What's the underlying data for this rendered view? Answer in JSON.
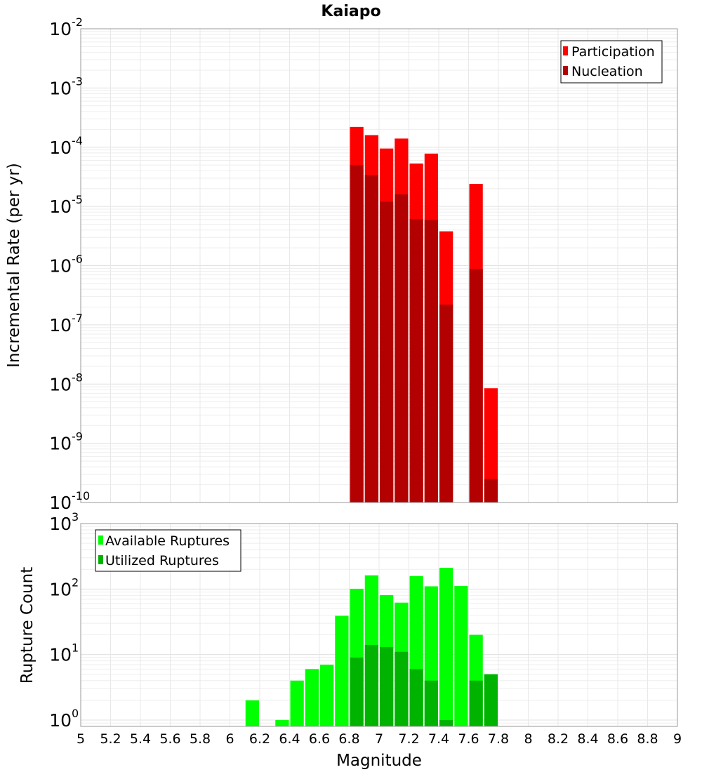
{
  "chart_data": [
    {
      "type": "bar",
      "title": "Kaiapo",
      "ylabel": "Incremental Rate (per yr)",
      "xlabel": "",
      "yscale": "log",
      "ylim": [
        1e-10,
        0.01
      ],
      "xlim": [
        5,
        9
      ],
      "bar_width": 0.1,
      "y_ticks": [
        {
          "base": "10",
          "exp": "-10",
          "value": 1e-10
        },
        {
          "base": "10",
          "exp": "-9",
          "value": 1e-09
        },
        {
          "base": "10",
          "exp": "-8",
          "value": 1e-08
        },
        {
          "base": "10",
          "exp": "-7",
          "value": 1e-07
        },
        {
          "base": "10",
          "exp": "-6",
          "value": 1e-06
        },
        {
          "base": "10",
          "exp": "-5",
          "value": 1e-05
        },
        {
          "base": "10",
          "exp": "-4",
          "value": 0.0001
        },
        {
          "base": "10",
          "exp": "-3",
          "value": 0.001
        },
        {
          "base": "10",
          "exp": "-2",
          "value": 0.01
        }
      ],
      "legend_position": "top-right",
      "grid": true,
      "series": [
        {
          "name": "Participation",
          "color": "#ff0000",
          "x": [
            6.85,
            6.95,
            7.05,
            7.15,
            7.25,
            7.35,
            7.45,
            7.65,
            7.75
          ],
          "values": [
            0.00022,
            0.00016,
            9.5e-05,
            0.00014,
            5.3e-05,
            7.8e-05,
            3.8e-06,
            2.4e-05,
            8.5e-09
          ]
        },
        {
          "name": "Nucleation",
          "color": "#b30000",
          "x": [
            6.85,
            6.95,
            7.05,
            7.15,
            7.25,
            7.35,
            7.45,
            7.65,
            7.75
          ],
          "values": [
            5e-05,
            3.4e-05,
            1.2e-05,
            1.6e-05,
            6.1e-06,
            5.9e-06,
            2.2e-07,
            8.8e-07,
            2.5e-10
          ]
        }
      ]
    },
    {
      "type": "bar",
      "title": "",
      "ylabel": "Rupture Count",
      "xlabel": "Magnitude",
      "yscale": "log",
      "ylim": [
        0.8,
        1000
      ],
      "xlim": [
        5,
        9
      ],
      "bar_width": 0.1,
      "x_ticks": [
        "5",
        "5.2",
        "5.4",
        "5.6",
        "5.8",
        "6",
        "6.2",
        "6.4",
        "6.6",
        "6.8",
        "7",
        "7.2",
        "7.4",
        "7.6",
        "7.8",
        "8",
        "8.2",
        "8.4",
        "8.6",
        "8.8",
        "9"
      ],
      "y_ticks": [
        {
          "base": "10",
          "exp": "0",
          "value": 1
        },
        {
          "base": "10",
          "exp": "1",
          "value": 10
        },
        {
          "base": "10",
          "exp": "2",
          "value": 100
        },
        {
          "base": "10",
          "exp": "3",
          "value": 1000
        }
      ],
      "legend_position": "top-left",
      "grid": true,
      "series": [
        {
          "name": "Available Ruptures",
          "color": "#00ff00",
          "x": [
            6.15,
            6.35,
            6.45,
            6.55,
            6.65,
            6.75,
            6.85,
            6.95,
            7.05,
            7.15,
            7.25,
            7.35,
            7.45,
            7.55,
            7.65,
            7.75
          ],
          "values": [
            2,
            1,
            4,
            6,
            7,
            39,
            101,
            162,
            81,
            62,
            158,
            110,
            211,
            111,
            20,
            5
          ]
        },
        {
          "name": "Utilized Ruptures",
          "color": "#00b300",
          "x": [
            6.85,
            6.95,
            7.05,
            7.15,
            7.25,
            7.35,
            7.45,
            7.65,
            7.75
          ],
          "values": [
            9,
            14,
            13,
            11,
            6,
            4,
            1,
            4,
            5
          ]
        }
      ]
    }
  ]
}
